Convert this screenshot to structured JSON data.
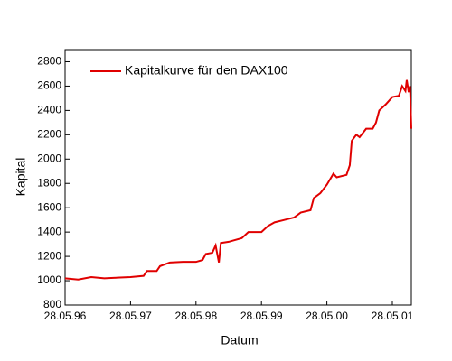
{
  "chart_data": {
    "type": "line",
    "x_label": "Datum",
    "y_label": "Kapital",
    "x": [
      0,
      0.2,
      0.4,
      0.6,
      0.8,
      1.0,
      1.2,
      1.25,
      1.4,
      1.45,
      1.6,
      1.8,
      2.0,
      2.1,
      2.15,
      2.25,
      2.3,
      2.35,
      2.38,
      2.5,
      2.7,
      2.8,
      3.0,
      3.1,
      3.2,
      3.35,
      3.5,
      3.6,
      3.75,
      3.8,
      3.9,
      4.0,
      4.1,
      4.15,
      4.3,
      4.35,
      4.38,
      4.45,
      4.5,
      4.6,
      4.7,
      4.75,
      4.8,
      4.9,
      5.0,
      5.1,
      5.15,
      5.2,
      5.22,
      5.25,
      5.27,
      5.29
    ],
    "series": [
      {
        "name": "Kapitalkurve für den DAX100",
        "color": "#e00000",
        "values": [
          1020,
          1010,
          1030,
          1020,
          1025,
          1030,
          1040,
          1080,
          1080,
          1120,
          1150,
          1155,
          1155,
          1170,
          1220,
          1230,
          1290,
          1150,
          1310,
          1320,
          1350,
          1400,
          1400,
          1450,
          1480,
          1500,
          1520,
          1560,
          1580,
          1680,
          1720,
          1790,
          1880,
          1850,
          1870,
          1950,
          2150,
          2200,
          2180,
          2250,
          2250,
          2300,
          2400,
          2450,
          2510,
          2520,
          2600,
          2560,
          2650,
          2550,
          2600,
          2250
        ]
      }
    ],
    "xlim": [
      0,
      5.29
    ],
    "xticks": [
      {
        "value": 0,
        "label": "28.05.96"
      },
      {
        "value": 1,
        "label": "28.05.97"
      },
      {
        "value": 2,
        "label": "28.05.98"
      },
      {
        "value": 3,
        "label": "28.05.99"
      },
      {
        "value": 4,
        "label": "28.05.00"
      },
      {
        "value": 5,
        "label": "28.05.01"
      }
    ],
    "ylim": [
      800,
      2900
    ],
    "yticks": [
      800,
      1000,
      1200,
      1400,
      1600,
      1800,
      2000,
      2200,
      2400,
      2600,
      2800
    ],
    "legend": "upper-left"
  }
}
